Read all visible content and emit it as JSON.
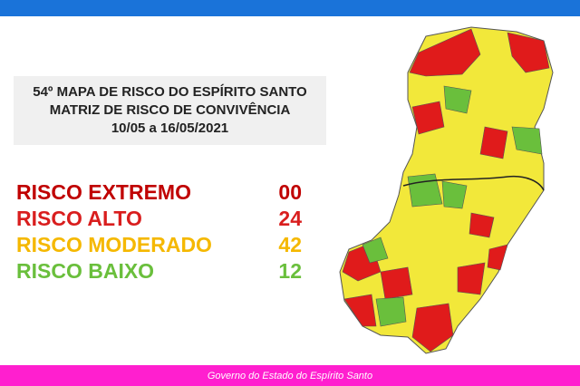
{
  "header": {
    "lines": [
      "54º MAPA DE RISCO DO ESPÍRITO SANTO",
      "MATRIZ DE RISCO DE CONVIVÊNCIA",
      "10/05 a 16/05/2021"
    ]
  },
  "risks": [
    {
      "label": "RISCO EXTREMO",
      "count": "00",
      "color": "#c00000"
    },
    {
      "label": "RISCO ALTO",
      "count": "24",
      "color": "#d91e1e"
    },
    {
      "label": "RISCO MODERADO",
      "count": "42",
      "color": "#f5b800"
    },
    {
      "label": "RISCO BAIXO",
      "count": "12",
      "color": "#6abf3c"
    }
  ],
  "footer": {
    "text": "Governo do Estado do Espírito Santo"
  }
}
